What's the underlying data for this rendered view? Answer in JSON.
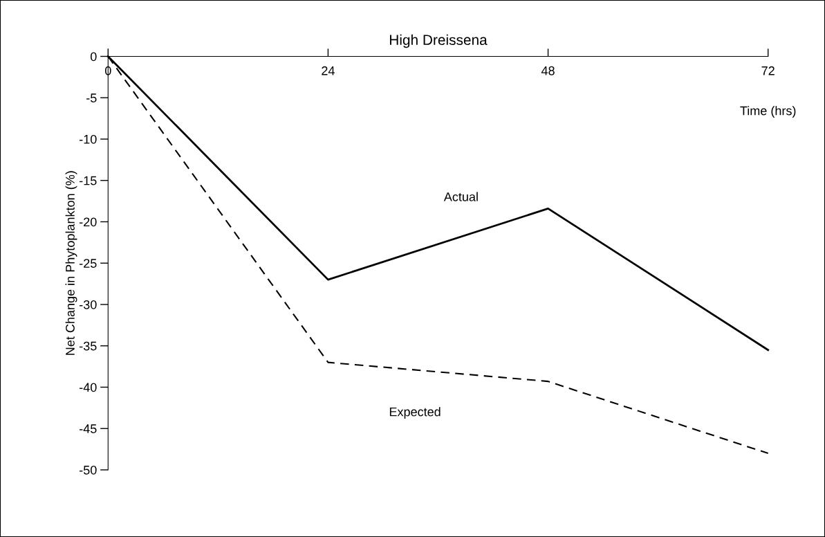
{
  "chart_data": {
    "type": "line",
    "title": "High Dreissena",
    "xlabel": "Time (hrs)",
    "ylabel": "Net Change in Phytoplankton (%)",
    "x": [
      0,
      24,
      48,
      72
    ],
    "series": [
      {
        "name": "Actual",
        "color": "#000000",
        "line_style": "solid",
        "values": [
          0,
          -27,
          -18.4,
          -35.5
        ]
      },
      {
        "name": "Expected",
        "color": "#000000",
        "line_style": "dashed",
        "values": [
          0,
          -37,
          -39.3,
          -48
        ]
      }
    ],
    "xlim": [
      0,
      72
    ],
    "xticks": [
      0,
      24,
      48,
      72
    ],
    "ylim": [
      -50,
      0
    ],
    "yticks": [
      0,
      -5,
      -10,
      -15,
      -20,
      -25,
      -30,
      -35,
      -40,
      -45,
      -50
    ],
    "grid": false,
    "legend": false,
    "marker": "none"
  }
}
